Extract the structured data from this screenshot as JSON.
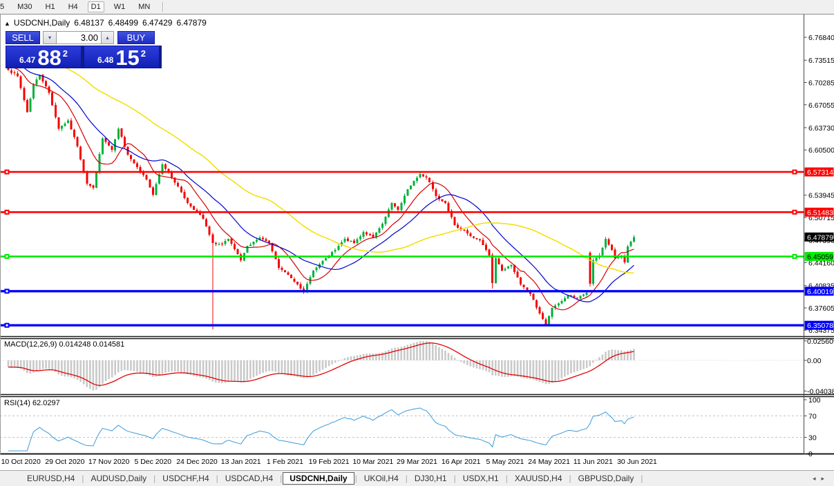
{
  "toolbar": {
    "timeframes": [
      {
        "label": "5"
      },
      {
        "label": "M30"
      },
      {
        "label": "H1"
      },
      {
        "label": "H4"
      },
      {
        "label": "D1"
      },
      {
        "label": "W1"
      },
      {
        "label": "MN"
      }
    ],
    "active": "D1"
  },
  "window": {
    "collapse_arrow": "▲",
    "symbol_title": "USDCNH,Daily",
    "ohlc": {
      "open": "6.48137",
      "high": "6.48499",
      "low": "6.47429",
      "close": "6.47879"
    }
  },
  "trade_panel": {
    "sell_label": "SELL",
    "buy_label": "BUY",
    "volume": "3.00",
    "spin_down_icon": "▾",
    "spin_up_icon": "▴",
    "bid": {
      "small": "6.47",
      "big": "88",
      "sup": "2"
    },
    "ask": {
      "small": "6.48",
      "big": "15",
      "sup": "2"
    }
  },
  "indicators": {
    "macd_label": "MACD(12,26,9) 0.014248 0.014581",
    "rsi_label": "RSI(14) 62.0297"
  },
  "axis": {
    "price_ticks": [
      "6.76840",
      "6.73515",
      "6.70285",
      "6.67055",
      "6.63730",
      "6.60500",
      "6.53945",
      "6.50715",
      "6.47390",
      "6.44160",
      "6.40835",
      "6.37605",
      "6.34375"
    ],
    "macd_ticks": [
      {
        "label": "0.025609",
        "v": 0.025609
      },
      {
        "label": "0.00",
        "v": 0
      },
      {
        "label": "-0.040388",
        "v": -0.040388
      }
    ],
    "rsi_ticks": [
      {
        "label": "100",
        "v": 100
      },
      {
        "label": "70",
        "v": 70
      },
      {
        "label": "30",
        "v": 30
      },
      {
        "label": "0",
        "v": 0
      }
    ]
  },
  "levels": [
    {
      "label": "6.57314",
      "value": 6.57314,
      "line_color": "#fe0000",
      "label_bg": "#fe0000",
      "label_fg": "#ffffff",
      "width": 2.6,
      "handles": "both"
    },
    {
      "label": "6.51483",
      "value": 6.51483,
      "line_color": "#fe0000",
      "label_bg": "#fe0000",
      "label_fg": "#ffffff",
      "width": 2.6,
      "handles": "both"
    },
    {
      "label": "6.45059",
      "value": 6.45059,
      "line_color": "#00e800",
      "label_bg": "#00ef00",
      "label_fg": "#000000",
      "width": 2.6,
      "handles": "both"
    },
    {
      "label": "6.40019",
      "value": 6.40019,
      "line_color": "#0000fe",
      "label_bg": "#0000fe",
      "label_fg": "#ffffff",
      "width": 3.4,
      "handles": "left"
    },
    {
      "label": "6.35078",
      "value": 6.35078,
      "line_color": "#0000fe",
      "label_bg": "#0000fe",
      "label_fg": "#ffffff",
      "width": 3.4,
      "handles": "left"
    }
  ],
  "current_price": {
    "label": "6.47879",
    "value": 6.47879,
    "label_bg": "#000000",
    "label_fg": "#ffffff"
  },
  "dates": [
    "10 Oct 2020",
    "29 Oct 2020",
    "17 Nov 2020",
    "5 Dec 2020",
    "24 Dec 2020",
    "13 Jan 2021",
    "1 Feb 2021",
    "19 Feb 2021",
    "10 Mar 2021",
    "29 Mar 2021",
    "16 Apr 2021",
    "5 May 2021",
    "24 May 2021",
    "11 Jun 2021",
    "30 Jun 2021"
  ],
  "tabs": {
    "items": [
      "EURUSD,H4",
      "AUDUSD,Daily",
      "USDCHF,H4",
      "USDCAD,H4",
      "USDCNH,Daily",
      "UKOil,H4",
      "DJ30,H1",
      "USDX,H1",
      "XAUUSD,H4",
      "GBPUSD,Daily"
    ],
    "active": "USDCNH,Daily",
    "scroll_left_icon": "◂",
    "scroll_right_icon": "▸"
  },
  "chart_data": {
    "type": "candlestick",
    "symbol": "USDCNH",
    "timeframe": "Daily",
    "ylim": [
      6.335,
      6.791
    ],
    "x_range": [
      "Oct 2020",
      "Jul 2021"
    ],
    "last_close": 6.47879,
    "candle_count": 200,
    "price_waypoints": [
      [
        0,
        6.721
      ],
      [
        3,
        6.712
      ],
      [
        6,
        6.66
      ],
      [
        8,
        6.7
      ],
      [
        10,
        6.714
      ],
      [
        13,
        6.688
      ],
      [
        16,
        6.636
      ],
      [
        19,
        6.648
      ],
      [
        22,
        6.61
      ],
      [
        25,
        6.556
      ],
      [
        27,
        6.55
      ],
      [
        30,
        6.622
      ],
      [
        33,
        6.605
      ],
      [
        35,
        6.636
      ],
      [
        38,
        6.598
      ],
      [
        41,
        6.58
      ],
      [
        44,
        6.562
      ],
      [
        46,
        6.54
      ],
      [
        49,
        6.584
      ],
      [
        51,
        6.572
      ],
      [
        54,
        6.552
      ],
      [
        57,
        6.528
      ],
      [
        60,
        6.515
      ],
      [
        62,
        6.505
      ],
      [
        65,
        6.47
      ],
      [
        68,
        6.468
      ],
      [
        70,
        6.476
      ],
      [
        74,
        6.445
      ],
      [
        76,
        6.466
      ],
      [
        80,
        6.478
      ],
      [
        83,
        6.47
      ],
      [
        86,
        6.434
      ],
      [
        89,
        6.424
      ],
      [
        92,
        6.41
      ],
      [
        94,
        6.4
      ],
      [
        97,
        6.43
      ],
      [
        101,
        6.448
      ],
      [
        104,
        6.46
      ],
      [
        107,
        6.476
      ],
      [
        110,
        6.47
      ],
      [
        113,
        6.486
      ],
      [
        116,
        6.478
      ],
      [
        119,
        6.498
      ],
      [
        122,
        6.528
      ],
      [
        124,
        6.518
      ],
      [
        127,
        6.548
      ],
      [
        129,
        6.56
      ],
      [
        131,
        6.57
      ],
      [
        133,
        6.565
      ],
      [
        134,
        6.558
      ],
      [
        136,
        6.538
      ],
      [
        139,
        6.528
      ],
      [
        142,
        6.496
      ],
      [
        145,
        6.488
      ],
      [
        147,
        6.48
      ],
      [
        150,
        6.474
      ],
      [
        153,
        6.452
      ],
      [
        154,
        6.412
      ],
      [
        155,
        6.448
      ],
      [
        157,
        6.43
      ],
      [
        160,
        6.438
      ],
      [
        163,
        6.41
      ],
      [
        166,
        6.396
      ],
      [
        169,
        6.368
      ],
      [
        171,
        6.352
      ],
      [
        173,
        6.376
      ],
      [
        176,
        6.386
      ],
      [
        178,
        6.394
      ],
      [
        181,
        6.39
      ],
      [
        184,
        6.398
      ],
      [
        185,
        6.411
      ],
      [
        186,
        6.445
      ],
      [
        188,
        6.452
      ],
      [
        190,
        6.476
      ],
      [
        192,
        6.46
      ],
      [
        193,
        6.448
      ],
      [
        195,
        6.452
      ],
      [
        196,
        6.442
      ],
      [
        197,
        6.465
      ],
      [
        198,
        6.472
      ],
      [
        199,
        6.47879
      ]
    ],
    "special_candles": {
      "65": {
        "lo": 6.345
      },
      "154": {
        "lo": 6.404
      },
      "171": {
        "lo": 6.3495
      },
      "185": {
        "o": 6.456,
        "c": 6.411,
        "hi": 6.458,
        "lo": 6.407
      }
    },
    "moving_averages": [
      {
        "name": "ma-fast",
        "period": 10,
        "color": "#d40000"
      },
      {
        "name": "ma-mid",
        "period": 21,
        "color": "#0000cc"
      },
      {
        "name": "ma-slow",
        "period": 55,
        "color": "#f2df00"
      }
    ],
    "macd": {
      "params": [
        12,
        26,
        9
      ],
      "main_value": 0.014248,
      "signal_value": 0.014581,
      "hist_color": "#c9c9c9",
      "signal_color": "#e00000",
      "scale_max": 0.025609,
      "scale_min": -0.040388
    },
    "rsi": {
      "period": 14,
      "value": 62.0297,
      "color": "#3a9ad9",
      "levels": [
        70,
        30
      ]
    },
    "colors": {
      "up": "#00b13c",
      "down": "#f60000"
    }
  }
}
